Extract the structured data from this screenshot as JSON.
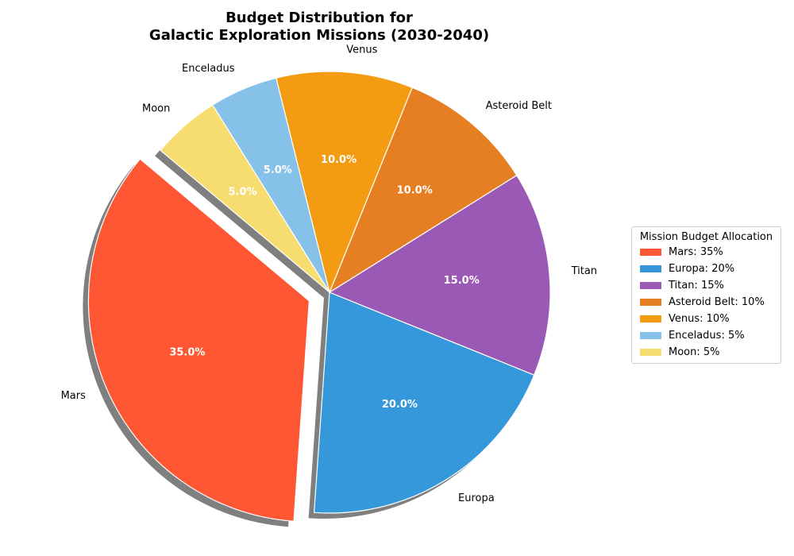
{
  "title_line1": "Budget Distribution for",
  "title_line2": "Galactic Exploration Missions (2030-2040)",
  "chart_data": {
    "type": "pie",
    "title": "Budget Distribution for Galactic Exploration Missions (2030-2040)",
    "start_angle_deg": 140,
    "direction": "counterclockwise",
    "shadow": true,
    "explode": [
      0.1,
      0,
      0,
      0,
      0,
      0,
      0
    ],
    "legend_title": "Mission Budget Allocation",
    "legend_placement": "center-right",
    "slices": [
      {
        "label": "Mars",
        "value": 35,
        "pct_label": "35.0%",
        "legend": "Mars: 35%",
        "color": "#FF5733"
      },
      {
        "label": "Europa",
        "value": 20,
        "pct_label": "20.0%",
        "legend": "Europa: 20%",
        "color": "#3498DB"
      },
      {
        "label": "Titan",
        "value": 15,
        "pct_label": "15.0%",
        "legend": "Titan: 15%",
        "color": "#9B59B6"
      },
      {
        "label": "Asteroid Belt",
        "value": 10,
        "pct_label": "10.0%",
        "legend": "Asteroid Belt: 10%",
        "color": "#E67E22"
      },
      {
        "label": "Venus",
        "value": 10,
        "pct_label": "10.0%",
        "legend": "Venus: 10%",
        "color": "#F39C12"
      },
      {
        "label": "Enceladus",
        "value": 5,
        "pct_label": "5.0%",
        "legend": "Enceladus: 5%",
        "color": "#85C1E9"
      },
      {
        "label": "Moon",
        "value": 5,
        "pct_label": "5.0%",
        "legend": "Moon: 5%",
        "color": "#F7DC6F"
      }
    ]
  }
}
